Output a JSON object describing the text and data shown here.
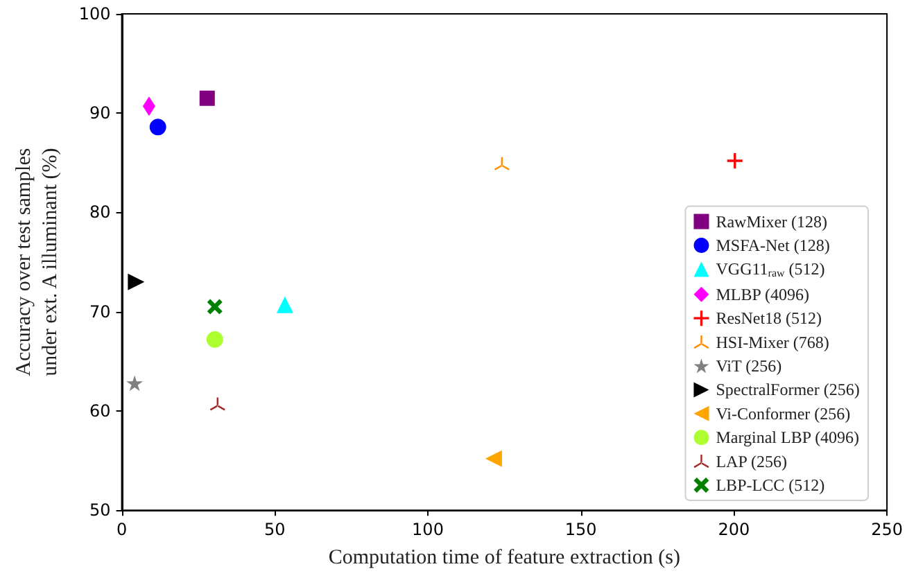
{
  "chart_data": {
    "type": "scatter",
    "xlabel": "Computation time of feature extraction (s)",
    "ylabel": "Accuracy over test samples\nunder ext. A illuminant (%)",
    "xlim": [
      0,
      250
    ],
    "xticks": [
      0,
      50,
      100,
      150,
      200,
      250
    ],
    "ylim": [
      50,
      100
    ],
    "yticks": [
      50,
      60,
      70,
      80,
      90,
      100
    ],
    "grid": false,
    "legend": "bottom right",
    "series": [
      {
        "name": "RawMixer (128)",
        "color": "#800080",
        "marker": "square",
        "x": [
          27.9
        ],
        "values": [
          91.5
        ]
      },
      {
        "name": "MSFA-Net (128)",
        "color": "#0000ff",
        "marker": "circle",
        "x": [
          11.8
        ],
        "values": [
          88.6
        ]
      },
      {
        "name": "VGG11$_{raw}$ (512)",
        "color": "#00ffff",
        "marker": "triangle",
        "x": [
          53.3
        ],
        "values": [
          70.7
        ]
      },
      {
        "name": "MLBP (4096)",
        "color": "#ff00ff",
        "marker": "diamond",
        "x": [
          8.9
        ],
        "values": [
          90.7
        ]
      },
      {
        "name": "ResNet18 (512)",
        "color": "#ff0000",
        "marker": "plus",
        "x": [
          200.3
        ],
        "values": [
          85.2
        ]
      },
      {
        "name": "HSI-Mixer (768)",
        "color": "#ff8c00",
        "marker": "cross",
        "x": [
          124.2
        ],
        "values": [
          84.9
        ]
      },
      {
        "name": "ViT (256)",
        "color": "#808080",
        "marker": "star",
        "x": [
          4.2
        ],
        "values": [
          62.8
        ]
      },
      {
        "name": "SpectralFormer (256)",
        "color": "#000000",
        "marker": "triangle-right",
        "x": [
          4.7
        ],
        "values": [
          73.0
        ]
      },
      {
        "name": "Vi-Conformer (256)",
        "color": "#ffa500",
        "marker": "triangle-left",
        "x": [
          121.5
        ],
        "values": [
          55.2
        ]
      },
      {
        "name": "Marginal LBP (4096)",
        "color": "#adff2f",
        "marker": "circle",
        "x": [
          30.4
        ],
        "values": [
          67.2
        ]
      },
      {
        "name": "LAP (256)",
        "color": "#a52a2a",
        "marker": "cross",
        "x": [
          31.3
        ],
        "values": [
          60.7
        ]
      },
      {
        "name": "LBP-LCC (512)",
        "color": "#008000",
        "marker": "x",
        "x": [
          30.4
        ],
        "values": [
          70.5
        ]
      }
    ]
  }
}
